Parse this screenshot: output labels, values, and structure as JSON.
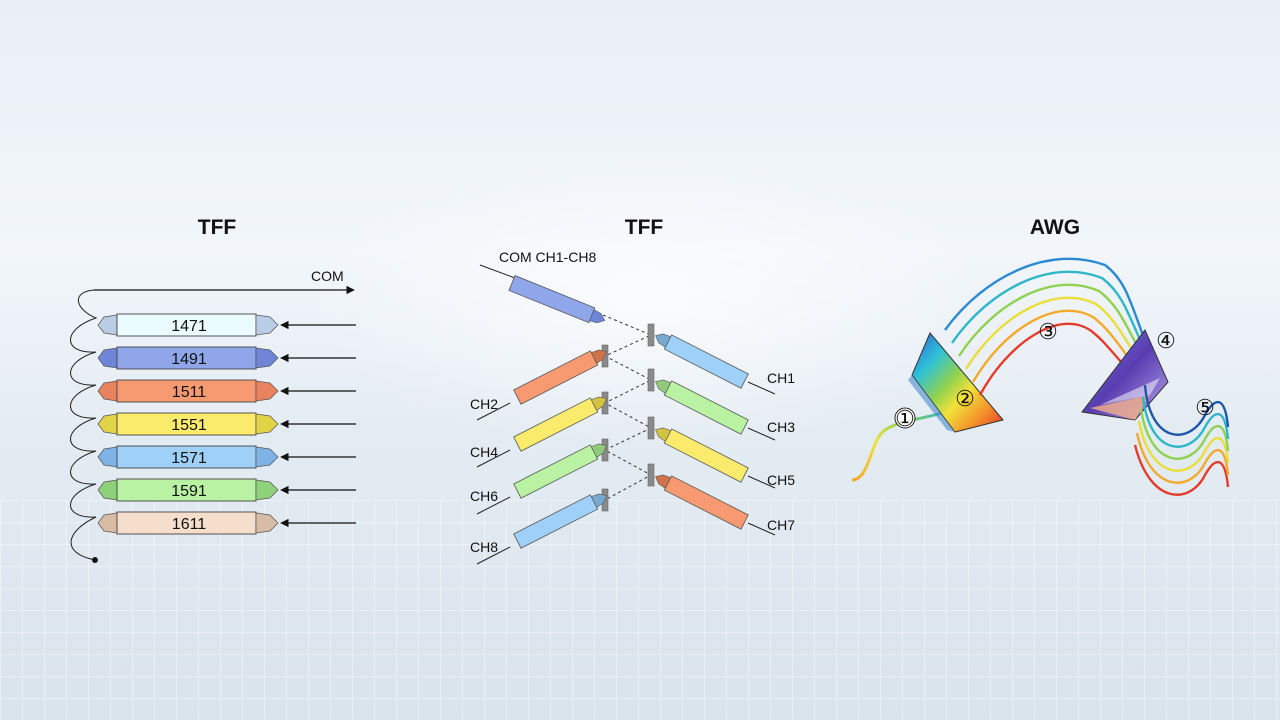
{
  "titles": {
    "left": "TFF",
    "middle": "TFF",
    "right": "AWG"
  },
  "left_diagram": {
    "com_label": "COM",
    "modules": [
      {
        "label": "1471",
        "color": "#eafcff",
        "cap": "#b9cde6"
      },
      {
        "label": "1491",
        "color": "#8fa7ea",
        "cap": "#6f86d8"
      },
      {
        "label": "1511",
        "color": "#f79a72",
        "cap": "#e9825e"
      },
      {
        "label": "1551",
        "color": "#fbeb6c",
        "cap": "#e3d347"
      },
      {
        "label": "1571",
        "color": "#9fd0f7",
        "cap": "#7fb3e6"
      },
      {
        "label": "1591",
        "color": "#b9f2a2",
        "cap": "#8fd17a"
      },
      {
        "label": "1611",
        "color": "#f5decb",
        "cap": "#d8bca6"
      }
    ]
  },
  "middle_diagram": {
    "com_label": "COM CH1-CH8",
    "com_color": "#8fa7ea",
    "left_channels": [
      {
        "label": "CH2",
        "color": "#f79a72"
      },
      {
        "label": "CH4",
        "color": "#fbeb6c"
      },
      {
        "label": "CH6",
        "color": "#b9f2a2"
      },
      {
        "label": "CH8",
        "color": "#9fd0f7"
      }
    ],
    "right_channels": [
      {
        "label": "CH1",
        "color": "#9fd0f7"
      },
      {
        "label": "CH3",
        "color": "#b9f2a2"
      },
      {
        "label": "CH5",
        "color": "#fbeb6c"
      },
      {
        "label": "CH7",
        "color": "#f79a72"
      }
    ]
  },
  "right_diagram": {
    "numbers": [
      "①",
      "②",
      "③",
      "④",
      "⑤"
    ],
    "wave_colors": [
      "#e53b2c",
      "#f4a92a",
      "#e9de3a",
      "#8fd150",
      "#2fb6c9",
      "#2a8bd2",
      "#1f57a8"
    ]
  }
}
